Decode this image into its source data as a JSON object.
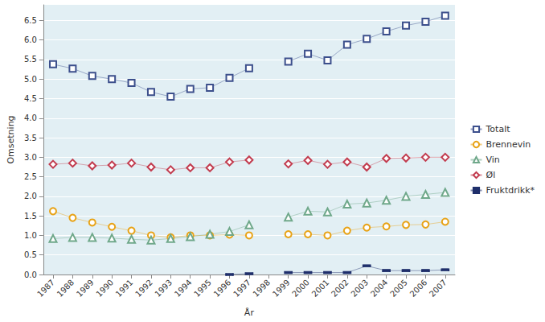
{
  "chart_data": {
    "type": "line",
    "x_label": "År",
    "y_label": "Omsetning",
    "categories": [
      "1987",
      "1988",
      "1989",
      "1990",
      "1991",
      "1992",
      "1993",
      "1994",
      "1995",
      "1996",
      "1997",
      "1998",
      "1999",
      "2000",
      "2001",
      "2002",
      "2003",
      "2004",
      "2005",
      "2006",
      "2007"
    ],
    "series": [
      {
        "name": "Totalt",
        "color": "#3c4f8c",
        "marker": "square",
        "values": [
          5.38,
          5.27,
          5.08,
          5.0,
          4.9,
          4.67,
          4.55,
          4.75,
          4.78,
          5.03,
          5.28,
          null,
          5.45,
          5.65,
          5.48,
          5.88,
          6.03,
          6.22,
          6.37,
          6.47,
          6.62
        ]
      },
      {
        "name": "Brennevin",
        "color": "#e8a317",
        "marker": "circle",
        "values": [
          1.62,
          1.45,
          1.33,
          1.22,
          1.12,
          1.0,
          0.95,
          1.0,
          1.0,
          1.02,
          1.0,
          null,
          1.03,
          1.03,
          1.0,
          1.12,
          1.2,
          1.23,
          1.27,
          1.28,
          1.35
        ]
      },
      {
        "name": "Vin",
        "color": "#6fa88a",
        "marker": "triangle",
        "values": [
          0.92,
          0.95,
          0.95,
          0.93,
          0.9,
          0.88,
          0.92,
          0.97,
          1.03,
          1.1,
          1.27,
          null,
          1.47,
          1.62,
          1.6,
          1.8,
          1.83,
          1.9,
          2.0,
          2.05,
          2.1
        ]
      },
      {
        "name": "Øl",
        "color": "#c23b4e",
        "marker": "diamond",
        "values": [
          2.82,
          2.85,
          2.78,
          2.8,
          2.85,
          2.75,
          2.68,
          2.73,
          2.73,
          2.88,
          2.93,
          null,
          2.83,
          2.92,
          2.82,
          2.88,
          2.75,
          2.97,
          2.98,
          3.0,
          3.0
        ]
      },
      {
        "name": "Fruktdrikk*",
        "color": "#1f2f6b",
        "marker": "dash",
        "values": [
          null,
          null,
          null,
          null,
          null,
          null,
          null,
          null,
          null,
          0.0,
          0.02,
          null,
          0.05,
          0.05,
          0.05,
          0.05,
          0.22,
          0.1,
          0.1,
          0.1,
          0.12
        ]
      }
    ],
    "ylim": [
      0,
      6.9
    ],
    "yticks": [
      {
        "value": 0,
        "label": "0.0"
      },
      0.5,
      {
        "value": 1,
        "label": "1.0"
      },
      1.5,
      {
        "value": 2,
        "label": "2.0"
      },
      2.5,
      {
        "value": 3,
        "label": "3.0"
      },
      3.5,
      {
        "value": 4,
        "label": "4.0"
      },
      4.5,
      {
        "value": 5,
        "label": "5.0"
      },
      5.5,
      {
        "value": 6,
        "label": "6.0"
      },
      6.5
    ],
    "grid": true,
    "legend": "right"
  }
}
